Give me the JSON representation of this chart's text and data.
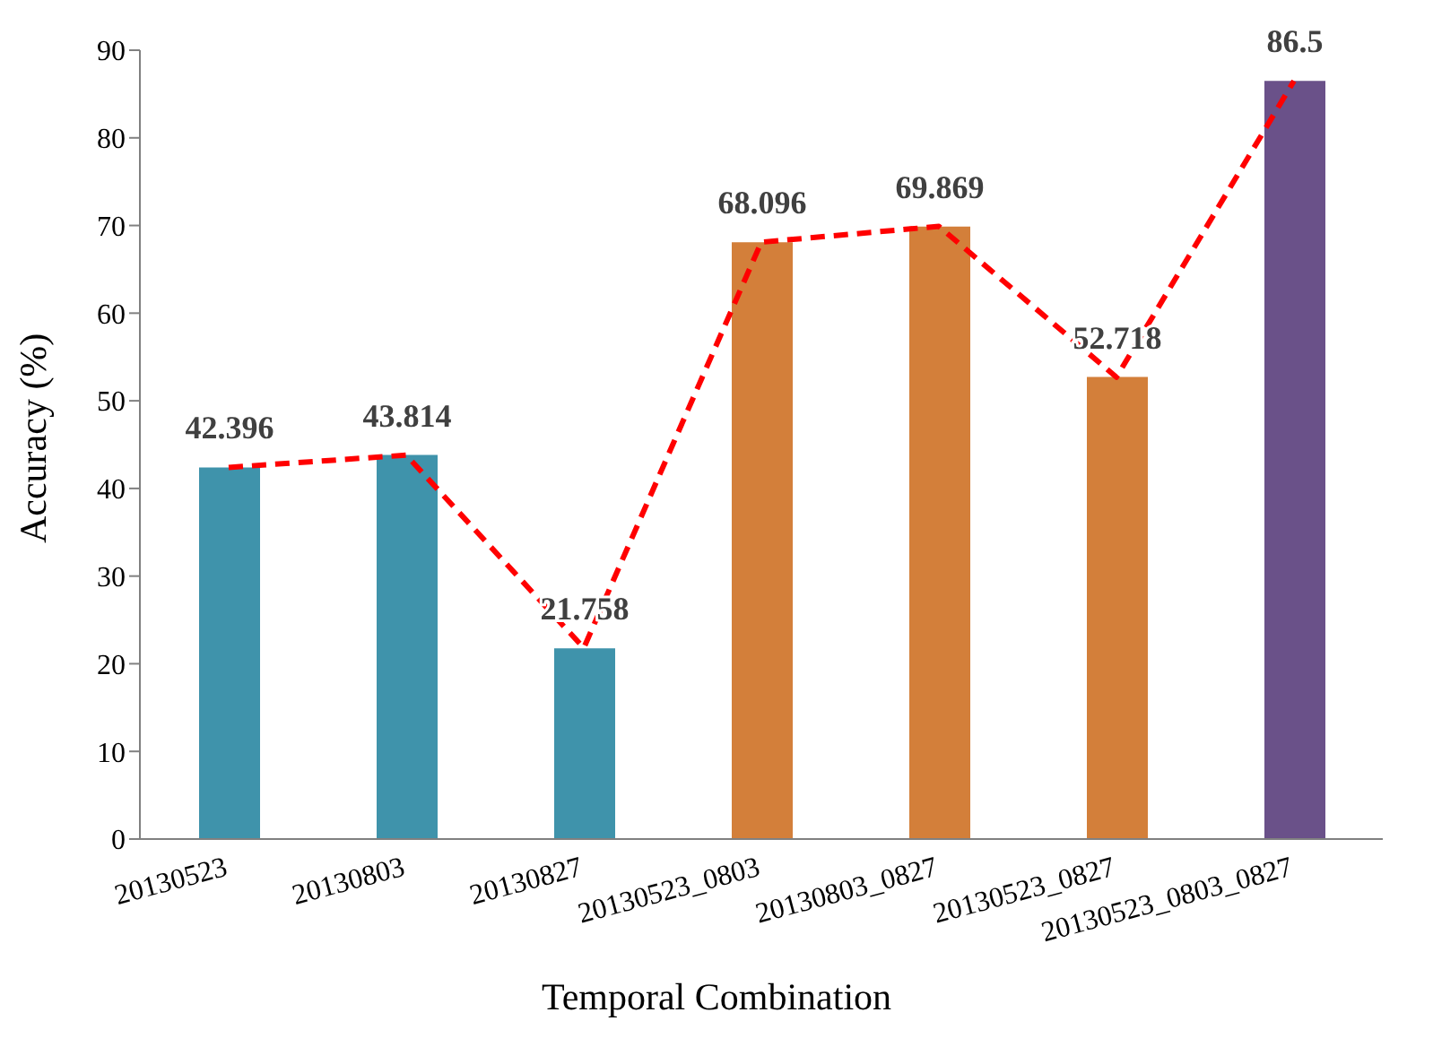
{
  "chart_data": {
    "type": "bar",
    "xlabel": "Temporal Combination",
    "ylabel": "Accuracy (%)",
    "categories": [
      "20130523",
      "20130803",
      "20130827",
      "20130523_0803",
      "20130803_0827",
      "20130523_0827",
      "20130523_0803_0827"
    ],
    "series": [
      {
        "colors": [
          "#3f93ab",
          "#3f93ab",
          "#3f93ab",
          "#d37f3a",
          "#d37f3a",
          "#d37f3a",
          "#6a5189"
        ],
        "values": [
          42.396,
          43.814,
          21.758,
          68.096,
          69.869,
          52.718,
          86.5
        ],
        "value_labels": [
          "42.396",
          "43.814",
          "21.758",
          "68.096",
          "69.869",
          "52.718",
          "86.5"
        ]
      },
      {
        "type": "line",
        "color": "#ff0000",
        "line_style": "dashed",
        "marker": "none",
        "values": [
          42.4,
          43.8,
          21.8,
          68.1,
          69.9,
          52.7,
          86.5
        ]
      }
    ],
    "ylim": [
      0,
      90
    ],
    "yticks": [
      0,
      10,
      20,
      30,
      40,
      50,
      60,
      70,
      80,
      90
    ],
    "grid": false,
    "legend": false
  }
}
